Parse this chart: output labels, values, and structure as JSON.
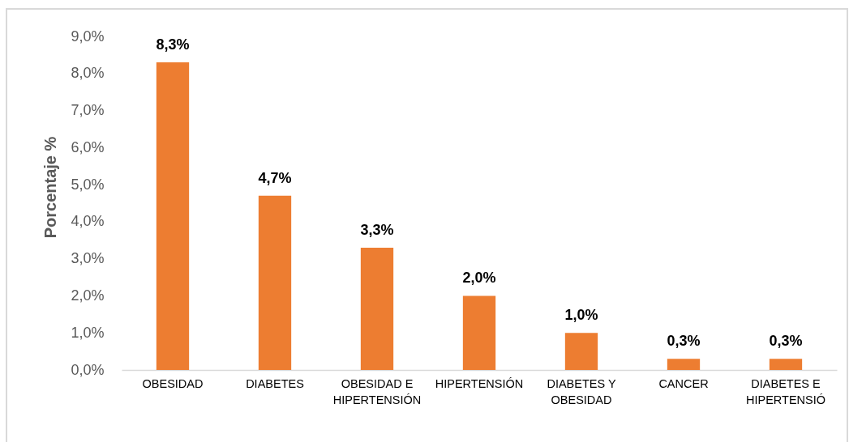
{
  "chart_data": {
    "type": "bar",
    "ylabel": "Porcentaje %",
    "categories": [
      "OBESIDAD",
      "DIABETES",
      "OBESIDAD E HIPERTENSIÓN",
      "HIPERTENSIÓN",
      "DIABETES Y OBESIDAD",
      "CANCER",
      "DIABETES E HIPERTENSIÓ"
    ],
    "values": [
      8.3,
      4.7,
      3.3,
      2.0,
      1.0,
      0.3,
      0.3
    ],
    "color": "#ed7d31",
    "value_labels": [
      "8,3%",
      "4,7%",
      "3,3%",
      "2,0%",
      "1,0%",
      "0,3%",
      "0,3%"
    ],
    "ylim": [
      0,
      9
    ],
    "yticks": [
      {
        "value": 0,
        "label": "0,0%"
      },
      {
        "value": 1,
        "label": "1,0%"
      },
      {
        "value": 2,
        "label": "2,0%"
      },
      {
        "value": 3,
        "label": "3,0%"
      },
      {
        "value": 4,
        "label": "4,0%"
      },
      {
        "value": 5,
        "label": "5,0%"
      },
      {
        "value": 6,
        "label": "6,0%"
      },
      {
        "value": 7,
        "label": "7,0%"
      },
      {
        "value": 8,
        "label": "8,0%"
      },
      {
        "value": 9,
        "label": "9,0%"
      }
    ]
  }
}
